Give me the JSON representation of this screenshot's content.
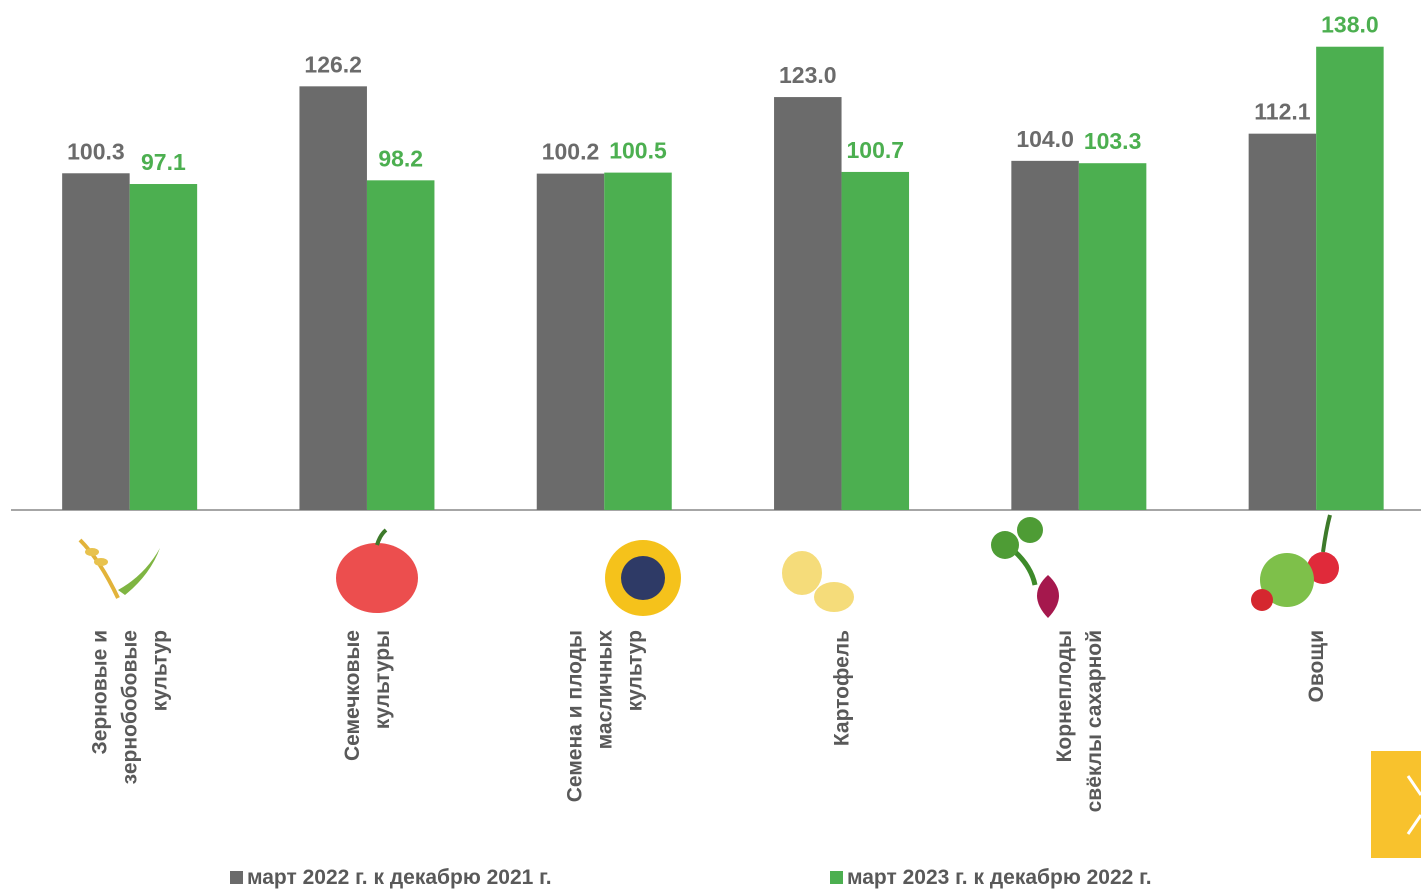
{
  "chart_data": {
    "type": "bar",
    "categories": [
      "Зерновые и\nзернобобовые\nкультур",
      "Семечковые\nкультуры",
      "Семена и плоды\nмасличных\nкультур",
      "Картофель",
      "Корнеплоды\nсвёклы сахарной",
      "Овощи"
    ],
    "series": [
      {
        "name": "март 2022 г. к декабрю 2021 г.",
        "color": "#6b6b6b",
        "values": [
          100.3,
          126.2,
          100.2,
          123.0,
          104.0,
          112.1
        ],
        "value_labels": [
          "100.3",
          "126.2",
          "100.2",
          "123.0",
          "104.0",
          "112.1"
        ]
      },
      {
        "name": "март 2023 г. к декабрю 2022 г.",
        "color": "#4caf50",
        "values": [
          97.1,
          98.2,
          100.5,
          100.7,
          103.3,
          138.0
        ],
        "value_labels": [
          "97.1",
          "98.2",
          "100.5",
          "100.7",
          "103.3",
          "138.0"
        ]
      }
    ],
    "ylim": [
      0,
      140
    ]
  }
}
